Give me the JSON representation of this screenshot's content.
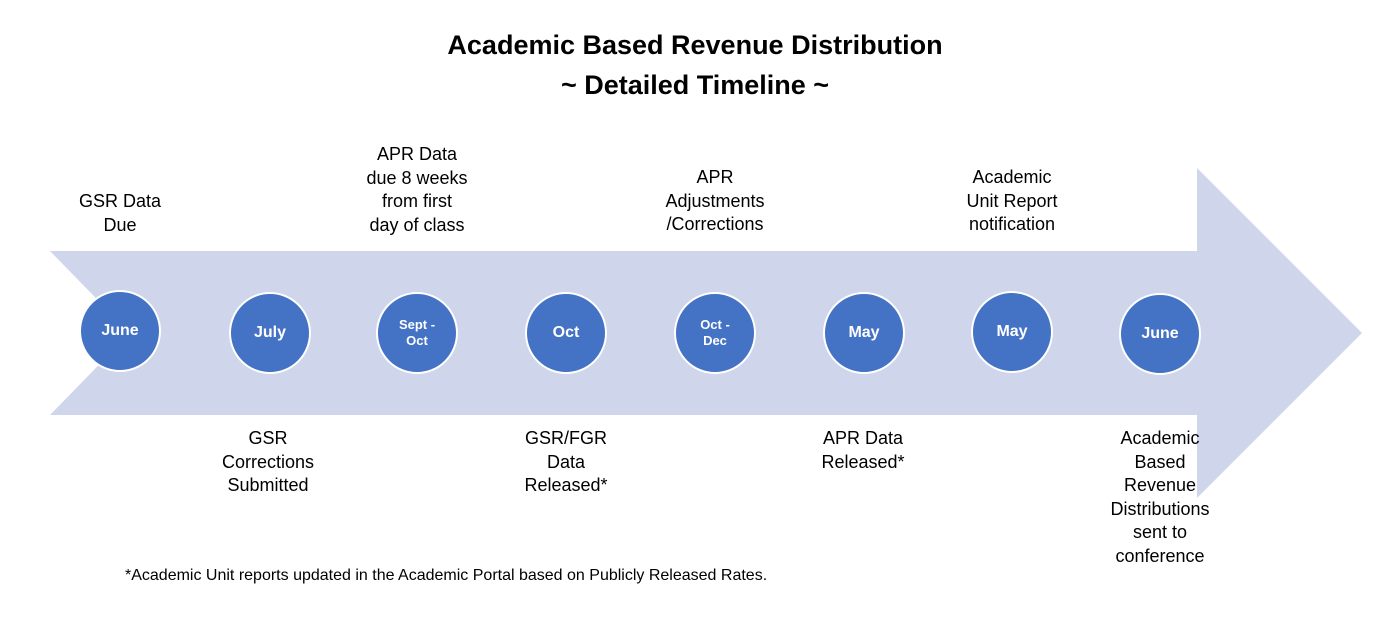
{
  "header": {
    "title": "Academic Based Revenue Distribution",
    "subtitle": "~ Detailed Timeline ~"
  },
  "colors": {
    "arrow_fill": "#cfd5ea",
    "circle_fill": "#4472c4",
    "circle_text": "#ffffff"
  },
  "timeline": {
    "milestones": [
      {
        "date": "June",
        "label_above": "GSR Data\nDue",
        "label_below": ""
      },
      {
        "date": "July",
        "label_above": "",
        "label_below": "GSR\nCorrections\nSubmitted"
      },
      {
        "date": "Sept -\nOct",
        "label_above": "APR Data\ndue 8 weeks\nfrom first\nday of class",
        "label_below": ""
      },
      {
        "date": "Oct",
        "label_above": "",
        "label_below": "GSR/FGR\nData\nReleased*"
      },
      {
        "date": "Oct -\nDec",
        "label_above": "APR\nAdjustments\n/Corrections",
        "label_below": ""
      },
      {
        "date": "May",
        "label_above": "",
        "label_below": "APR Data\nReleased*"
      },
      {
        "date": "May",
        "label_above": "Academic\nUnit Report\nnotification",
        "label_below": ""
      },
      {
        "date": "June",
        "label_above": "",
        "label_below": "Academic\nBased\nRevenue\nDistributions\nsent to\nconference"
      }
    ]
  },
  "footnote": "*Academic Unit reports updated in the Academic Portal based on Publicly Released Rates."
}
